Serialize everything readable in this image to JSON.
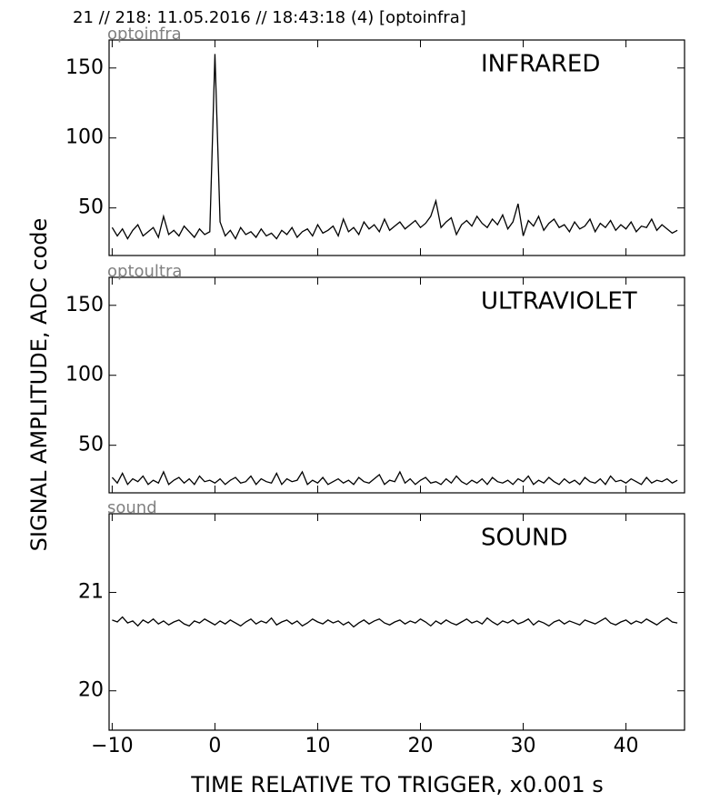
{
  "title": "21 // 218:   11.05.2016 // 18:43:18 (4)  [optoinfra]",
  "ylabel": "SIGNAL AMPLITUDE,  ADC code",
  "xlabel": "TIME RELATIVE TO TRIGGER,   x0.001 s",
  "chart_data": [
    {
      "type": "line",
      "label": "optoinfra",
      "annotation": "INFRARED",
      "color": "#000000",
      "xlim": [
        -10.3,
        45.7
      ],
      "ylim": [
        16,
        170
      ],
      "yticks": [
        50,
        100,
        150
      ],
      "xticks": [
        -10,
        0,
        10,
        20,
        30,
        40
      ],
      "x": [
        -10,
        -9.5,
        -9,
        -8.5,
        -8,
        -7.5,
        -7,
        -6.5,
        -6,
        -5.5,
        -5,
        -4.5,
        -4,
        -3.5,
        -3,
        -2.5,
        -2,
        -1.5,
        -1,
        -0.5,
        0,
        0.5,
        1,
        1.5,
        2,
        2.5,
        3,
        3.5,
        4,
        4.5,
        5,
        5.5,
        6,
        6.5,
        7,
        7.5,
        8,
        8.5,
        9,
        9.5,
        10,
        10.5,
        11,
        11.5,
        12,
        12.5,
        13,
        13.5,
        14,
        14.5,
        15,
        15.5,
        16,
        16.5,
        17,
        17.5,
        18,
        18.5,
        19,
        19.5,
        20,
        20.5,
        21,
        21.5,
        22,
        22.5,
        23,
        23.5,
        24,
        24.5,
        25,
        25.5,
        26,
        26.5,
        27,
        27.5,
        28,
        28.5,
        29,
        29.5,
        30,
        30.5,
        31,
        31.5,
        32,
        32.5,
        33,
        33.5,
        34,
        34.5,
        35,
        35.5,
        36,
        36.5,
        37,
        37.5,
        38,
        38.5,
        39,
        39.5,
        40,
        40.5,
        41,
        41.5,
        42,
        42.5,
        43,
        43.5,
        44,
        44.5,
        45
      ],
      "values": [
        36,
        30,
        35,
        28,
        34,
        38,
        30,
        33,
        36,
        29,
        44,
        31,
        34,
        30,
        37,
        33,
        29,
        35,
        31,
        33,
        160,
        40,
        30,
        34,
        28,
        36,
        31,
        33,
        29,
        35,
        30,
        32,
        28,
        34,
        31,
        36,
        29,
        33,
        35,
        30,
        38,
        32,
        34,
        37,
        30,
        42,
        33,
        36,
        31,
        40,
        35,
        38,
        33,
        42,
        34,
        37,
        40,
        35,
        38,
        41,
        36,
        39,
        44,
        55,
        36,
        40,
        43,
        31,
        38,
        41,
        37,
        44,
        39,
        36,
        42,
        38,
        45,
        35,
        40,
        53,
        30,
        41,
        37,
        44,
        34,
        39,
        42,
        36,
        38,
        33,
        40,
        35,
        37,
        42,
        33,
        39,
        36,
        41,
        34,
        38,
        35,
        40,
        33,
        37,
        36,
        42,
        34,
        38,
        35,
        32,
        34
      ]
    },
    {
      "type": "line",
      "label": "optoultra",
      "annotation": "ULTRAVIOLET",
      "color": "#000000",
      "xlim": [
        -10.3,
        45.7
      ],
      "ylim": [
        16,
        170
      ],
      "yticks": [
        50,
        100,
        150
      ],
      "xticks": [
        -10,
        0,
        10,
        20,
        30,
        40
      ],
      "x": [
        -10,
        -9.5,
        -9,
        -8.5,
        -8,
        -7.5,
        -7,
        -6.5,
        -6,
        -5.5,
        -5,
        -4.5,
        -4,
        -3.5,
        -3,
        -2.5,
        -2,
        -1.5,
        -1,
        -0.5,
        0,
        0.5,
        1,
        1.5,
        2,
        2.5,
        3,
        3.5,
        4,
        4.5,
        5,
        5.5,
        6,
        6.5,
        7,
        7.5,
        8,
        8.5,
        9,
        9.5,
        10,
        10.5,
        11,
        11.5,
        12,
        12.5,
        13,
        13.5,
        14,
        14.5,
        15,
        15.5,
        16,
        16.5,
        17,
        17.5,
        18,
        18.5,
        19,
        19.5,
        20,
        20.5,
        21,
        21.5,
        22,
        22.5,
        23,
        23.5,
        24,
        24.5,
        25,
        25.5,
        26,
        26.5,
        27,
        27.5,
        28,
        28.5,
        29,
        29.5,
        30,
        30.5,
        31,
        31.5,
        32,
        32.5,
        33,
        33.5,
        34,
        34.5,
        35,
        35.5,
        36,
        36.5,
        37,
        37.5,
        38,
        38.5,
        39,
        39.5,
        40,
        40.5,
        41,
        41.5,
        42,
        42.5,
        43,
        43.5,
        44,
        44.5,
        45
      ],
      "values": [
        27,
        23,
        30,
        22,
        26,
        24,
        28,
        22,
        25,
        23,
        31,
        22,
        25,
        27,
        23,
        26,
        22,
        28,
        24,
        25,
        23,
        26,
        22,
        25,
        27,
        23,
        24,
        28,
        22,
        26,
        24,
        23,
        30,
        22,
        26,
        24,
        25,
        31,
        22,
        25,
        23,
        27,
        22,
        24,
        26,
        23,
        25,
        22,
        27,
        24,
        23,
        26,
        29,
        22,
        25,
        24,
        31,
        23,
        26,
        22,
        25,
        27,
        23,
        24,
        22,
        26,
        23,
        28,
        24,
        22,
        25,
        23,
        26,
        22,
        27,
        24,
        23,
        25,
        22,
        26,
        24,
        28,
        22,
        25,
        23,
        27,
        24,
        22,
        26,
        23,
        25,
        22,
        27,
        24,
        23,
        26,
        22,
        28,
        24,
        25,
        23,
        26,
        24,
        22,
        27,
        23,
        25,
        24,
        26,
        23,
        25
      ]
    },
    {
      "type": "line",
      "label": "sound",
      "annotation": "SOUND",
      "color": "#000000",
      "xlim": [
        -10.3,
        45.7
      ],
      "ylim": [
        19.6,
        21.8
      ],
      "yticks": [
        20,
        21
      ],
      "xticks": [
        {
          "value": -10,
          "label": "−10"
        },
        0,
        10,
        20,
        30,
        40
      ],
      "x": [
        -10,
        -9.5,
        -9,
        -8.5,
        -8,
        -7.5,
        -7,
        -6.5,
        -6,
        -5.5,
        -5,
        -4.5,
        -4,
        -3.5,
        -3,
        -2.5,
        -2,
        -1.5,
        -1,
        -0.5,
        0,
        0.5,
        1,
        1.5,
        2,
        2.5,
        3,
        3.5,
        4,
        4.5,
        5,
        5.5,
        6,
        6.5,
        7,
        7.5,
        8,
        8.5,
        9,
        9.5,
        10,
        10.5,
        11,
        11.5,
        12,
        12.5,
        13,
        13.5,
        14,
        14.5,
        15,
        15.5,
        16,
        16.5,
        17,
        17.5,
        18,
        18.5,
        19,
        19.5,
        20,
        20.5,
        21,
        21.5,
        22,
        22.5,
        23,
        23.5,
        24,
        24.5,
        25,
        25.5,
        26,
        26.5,
        27,
        27.5,
        28,
        28.5,
        29,
        29.5,
        30,
        30.5,
        31,
        31.5,
        32,
        32.5,
        33,
        33.5,
        34,
        34.5,
        35,
        35.5,
        36,
        36.5,
        37,
        37.5,
        38,
        38.5,
        39,
        39.5,
        40,
        40.5,
        41,
        41.5,
        42,
        42.5,
        43,
        43.5,
        44,
        44.5,
        45
      ],
      "values": [
        20.72,
        20.7,
        20.75,
        20.69,
        20.71,
        20.66,
        20.72,
        20.69,
        20.73,
        20.68,
        20.71,
        20.67,
        20.7,
        20.72,
        20.68,
        20.66,
        20.71,
        20.69,
        20.73,
        20.7,
        20.67,
        20.71,
        20.68,
        20.72,
        20.69,
        20.66,
        20.7,
        20.73,
        20.68,
        20.71,
        20.69,
        20.74,
        20.67,
        20.7,
        20.72,
        20.68,
        20.71,
        20.66,
        20.69,
        20.73,
        20.7,
        20.68,
        20.72,
        20.69,
        20.71,
        20.67,
        20.7,
        20.65,
        20.69,
        20.72,
        20.68,
        20.71,
        20.73,
        20.69,
        20.67,
        20.7,
        20.72,
        20.68,
        20.71,
        20.69,
        20.73,
        20.7,
        20.66,
        20.71,
        20.68,
        20.72,
        20.69,
        20.67,
        20.7,
        20.73,
        20.69,
        20.71,
        20.68,
        20.74,
        20.7,
        20.67,
        20.71,
        20.69,
        20.72,
        20.68,
        20.7,
        20.73,
        20.67,
        20.71,
        20.69,
        20.66,
        20.7,
        20.72,
        20.68,
        20.71,
        20.69,
        20.67,
        20.72,
        20.7,
        20.68,
        20.71,
        20.74,
        20.69,
        20.67,
        20.7,
        20.72,
        20.68,
        20.71,
        20.69,
        20.73,
        20.7,
        20.67,
        20.71,
        20.74,
        20.7,
        20.69
      ]
    }
  ]
}
